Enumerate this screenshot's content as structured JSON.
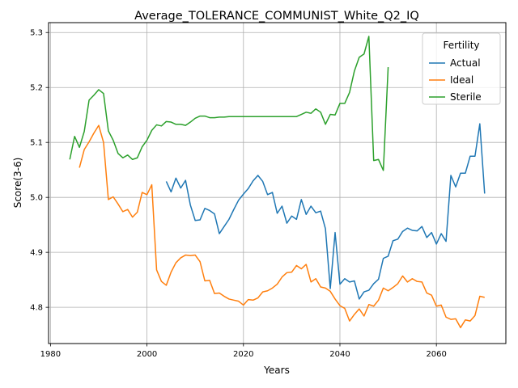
{
  "chart_data": {
    "type": "line",
    "title": "Average_TOLERANCE_COMMUNIST_White_Q2_IQ",
    "xlabel": "Years",
    "ylabel": "Score(3-6)",
    "xlim": [
      1979.6,
      2074.4
    ],
    "ylim": [
      4.734,
      5.318
    ],
    "xticks": [
      1980,
      2000,
      2020,
      2040,
      2060
    ],
    "yticks": [
      4.8,
      4.9,
      5.0,
      5.1,
      5.2,
      5.3
    ],
    "xtick_labels": [
      "1980",
      "2000",
      "2020",
      "2040",
      "2060"
    ],
    "ytick_labels": [
      "4.8",
      "4.9",
      "5.0",
      "5.1",
      "5.2",
      "5.3"
    ],
    "grid": true,
    "legend": {
      "title": "Fertility",
      "position": "top-right"
    },
    "series": [
      {
        "name": "Actual",
        "color": "#1f77b4",
        "x": [
          2004,
          2005,
          2006,
          2007,
          2008,
          2009,
          2010,
          2011,
          2012,
          2013,
          2014,
          2015,
          2016,
          2017,
          2018,
          2019,
          2020,
          2021,
          2022,
          2023,
          2024,
          2025,
          2026,
          2027,
          2028,
          2029,
          2030,
          2031,
          2032,
          2033,
          2034,
          2035,
          2036,
          2037,
          2038,
          2039,
          2040,
          2041,
          2042,
          2043,
          2044,
          2045,
          2046,
          2047,
          2048,
          2049,
          2050,
          2051,
          2052,
          2053,
          2054,
          2055,
          2056,
          2057,
          2058,
          2059,
          2060,
          2061,
          2062,
          2063,
          2064,
          2065,
          2066,
          2067,
          2068,
          2069,
          2070
        ],
        "y": [
          5.029,
          5.01,
          5.035,
          5.017,
          5.031,
          4.986,
          4.958,
          4.959,
          4.98,
          4.976,
          4.97,
          4.934,
          4.947,
          4.96,
          4.978,
          4.995,
          5.006,
          5.016,
          5.03,
          5.04,
          5.029,
          5.005,
          5.009,
          4.971,
          4.984,
          4.953,
          4.966,
          4.96,
          4.996,
          4.969,
          4.984,
          4.972,
          4.975,
          4.943,
          4.834,
          4.936,
          4.842,
          4.852,
          4.846,
          4.848,
          4.815,
          4.828,
          4.831,
          4.843,
          4.851,
          4.889,
          4.893,
          4.921,
          4.924,
          4.938,
          4.944,
          4.94,
          4.939,
          4.947,
          4.927,
          4.936,
          4.915,
          4.934,
          4.92,
          5.04,
          5.019,
          5.044,
          5.044,
          5.075,
          5.075,
          5.134,
          5.007
        ]
      },
      {
        "name": "Ideal",
        "color": "#ff7f0e",
        "x": [
          1986,
          1987,
          1988,
          1989,
          1990,
          1991,
          1992,
          1993,
          1994,
          1995,
          1996,
          1997,
          1998,
          1999,
          2000,
          2001,
          2002,
          2003,
          2004,
          2005,
          2006,
          2007,
          2008,
          2009,
          2010,
          2011,
          2012,
          2013,
          2014,
          2015,
          2016,
          2017,
          2018,
          2019,
          2020,
          2021,
          2022,
          2023,
          2024,
          2025,
          2026,
          2027,
          2028,
          2029,
          2030,
          2031,
          2032,
          2033,
          2034,
          2035,
          2036,
          2037,
          2038,
          2039,
          2040,
          2041,
          2042,
          2043,
          2044,
          2045,
          2046,
          2047,
          2048,
          2049,
          2050,
          2051,
          2052,
          2053,
          2054,
          2055,
          2056,
          2057,
          2058,
          2059,
          2060,
          2061,
          2062,
          2063,
          2064,
          2065,
          2066,
          2067,
          2068,
          2069,
          2070
        ],
        "y": [
          5.054,
          5.087,
          5.101,
          5.117,
          5.131,
          5.1,
          4.996,
          5.001,
          4.988,
          4.974,
          4.978,
          4.964,
          4.973,
          5.009,
          5.005,
          5.023,
          4.868,
          4.847,
          4.84,
          4.864,
          4.881,
          4.89,
          4.895,
          4.894,
          4.895,
          4.883,
          4.848,
          4.849,
          4.825,
          4.826,
          4.82,
          4.815,
          4.813,
          4.811,
          4.804,
          4.814,
          4.813,
          4.817,
          4.828,
          4.83,
          4.835,
          4.842,
          4.855,
          4.863,
          4.864,
          4.876,
          4.87,
          4.878,
          4.846,
          4.852,
          4.837,
          4.835,
          4.829,
          4.815,
          4.803,
          4.798,
          4.775,
          4.787,
          4.797,
          4.784,
          4.805,
          4.802,
          4.813,
          4.835,
          4.83,
          4.836,
          4.843,
          4.857,
          4.846,
          4.852,
          4.847,
          4.846,
          4.826,
          4.822,
          4.802,
          4.804,
          4.782,
          4.778,
          4.779,
          4.763,
          4.777,
          4.775,
          4.785,
          4.82,
          4.818
        ]
      },
      {
        "name": "Sterile",
        "color": "#2ca02c",
        "x": [
          1984,
          1985,
          1986,
          1987,
          1988,
          1989,
          1990,
          1991,
          1992,
          1993,
          1994,
          1995,
          1996,
          1997,
          1998,
          1999,
          2000,
          2001,
          2002,
          2003,
          2004,
          2005,
          2006,
          2007,
          2008,
          2009,
          2010,
          2011,
          2012,
          2013,
          2014,
          2015,
          2016,
          2017,
          2018,
          2019,
          2020,
          2021,
          2022,
          2023,
          2024,
          2025,
          2026,
          2027,
          2028,
          2029,
          2030,
          2031,
          2032,
          2033,
          2034,
          2035,
          2036,
          2037,
          2038,
          2039,
          2040,
          2041,
          2042,
          2043,
          2044,
          2045,
          2046,
          2047,
          2048,
          2049,
          2050
        ],
        "y": [
          5.069,
          5.111,
          5.091,
          5.12,
          5.177,
          5.186,
          5.196,
          5.189,
          5.121,
          5.104,
          5.08,
          5.072,
          5.077,
          5.069,
          5.072,
          5.092,
          5.104,
          5.122,
          5.132,
          5.13,
          5.138,
          5.137,
          5.133,
          5.133,
          5.131,
          5.137,
          5.144,
          5.148,
          5.148,
          5.145,
          5.145,
          5.146,
          5.146,
          5.147,
          5.147,
          5.147,
          5.147,
          5.147,
          5.147,
          5.147,
          5.147,
          5.147,
          5.147,
          5.147,
          5.147,
          5.147,
          5.147,
          5.147,
          5.151,
          5.155,
          5.153,
          5.161,
          5.155,
          5.133,
          5.151,
          5.15,
          5.171,
          5.171,
          5.191,
          5.23,
          5.255,
          5.261,
          5.293,
          5.067,
          5.069,
          5.049,
          5.237
        ]
      }
    ]
  }
}
